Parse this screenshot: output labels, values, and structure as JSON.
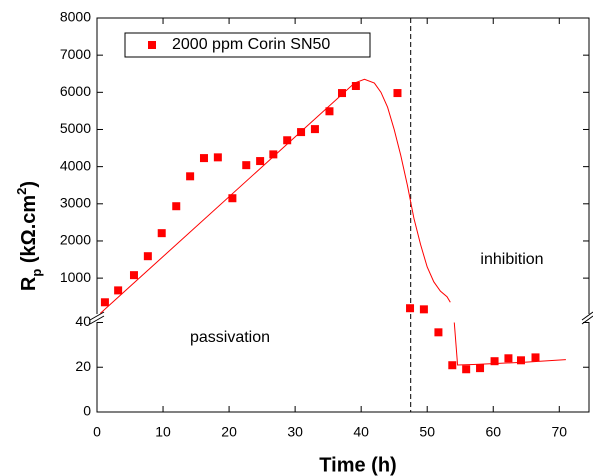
{
  "chart_data": [
    {
      "type": "scatter",
      "ylabel": [
        "R",
        "p",
        " (kΩ.cm",
        "2",
        ")"
      ],
      "ylim": [
        -100,
        8000
      ],
      "yticks": [
        1000,
        2000,
        3000,
        4000,
        5000,
        6000,
        7000,
        8000
      ],
      "vline": 47.5,
      "annotation": "inhibition",
      "legend": "upper left",
      "series": [
        {
          "name": "2000 ppm Corin SN50",
          "color": "#ff0000",
          "x": [
            1.2,
            3.2,
            5.6,
            7.7,
            9.8,
            12.0,
            14.1,
            16.2,
            18.3,
            20.5,
            22.6,
            24.7,
            26.7,
            28.8,
            30.9,
            33.0,
            35.2,
            37.1,
            39.2,
            45.5,
            47.4,
            49.5
          ],
          "values": [
            350,
            670,
            1080,
            1590,
            2210,
            2935,
            3740,
            4230,
            4250,
            3150,
            4040,
            4150,
            4330,
            4710,
            4930,
            5010,
            5490,
            5980,
            6170,
            5980,
            190,
            160
          ]
        }
      ],
      "fit": {
        "color": "#ff0000",
        "x": [
          0.5,
          39,
          40.5,
          42,
          43,
          44,
          45,
          46,
          47,
          48,
          49,
          50,
          51,
          52,
          53,
          53.5
        ],
        "values": [
          50,
          6250,
          6350,
          6250,
          6000,
          5600,
          5000,
          4300,
          3500,
          2600,
          1900,
          1300,
          900,
          650,
          500,
          350
        ]
      }
    },
    {
      "type": "scatter",
      "xlabel": "Time (h)",
      "xlim": [
        0,
        74.5
      ],
      "xticks": [
        0,
        10,
        20,
        30,
        40,
        50,
        60,
        70
      ],
      "ylim": [
        0,
        42
      ],
      "yticks": [
        0,
        20,
        40
      ],
      "annotation": "passivation",
      "series": [
        {
          "color": "#ff0000",
          "x": [
            51.7,
            53.8,
            55.9,
            58.0,
            60.2,
            62.3,
            64.2,
            66.4
          ],
          "values": [
            35.6,
            20.9,
            19.1,
            19.6,
            22.7,
            24.0,
            23.1,
            24.4
          ]
        }
      ],
      "fit": {
        "color": "#ff0000",
        "x": [
          54.1,
          54.6,
          57,
          60,
          65,
          71
        ],
        "values": [
          40,
          21,
          21.2,
          21.6,
          22.3,
          23.4
        ]
      }
    }
  ]
}
